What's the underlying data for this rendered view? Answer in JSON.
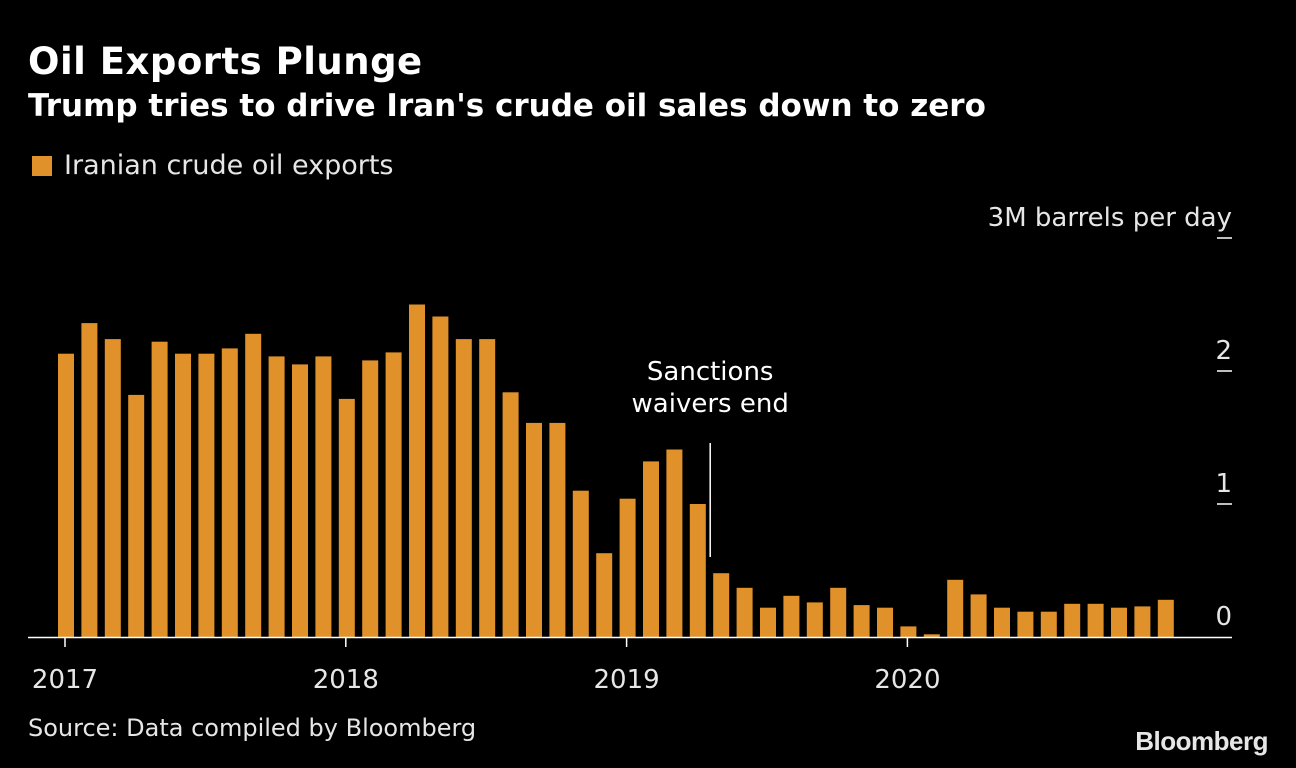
{
  "title": "Oil Exports Plunge",
  "subtitle": "Trump tries to drive Iran's crude oil sales down to zero",
  "source": "Source: Data compiled by Bloomberg",
  "brand": "Bloomberg",
  "colors": {
    "bar": "#e0912a",
    "background": "#000000",
    "text": "#ffffff",
    "axis": "#ffffff"
  },
  "chart_data": {
    "type": "bar",
    "title": "Oil Exports Plunge",
    "subtitle": "Trump tries to drive Iran's crude oil sales down to zero",
    "ylabel": "3M barrels per day",
    "ylim": [
      0,
      3
    ],
    "y_ticks": [
      0,
      1,
      2,
      3
    ],
    "y_tick_labels": [
      "0",
      "1",
      "2",
      "3M barrels per day"
    ],
    "x_tick_labels": [
      "2017",
      "2018",
      "2019",
      "2020"
    ],
    "legend": "Iranian crude oil exports",
    "grid": false,
    "series": [
      {
        "name": "Iranian crude oil exports",
        "categories": [
          "2017-01",
          "2017-02",
          "2017-03",
          "2017-04",
          "2017-05",
          "2017-06",
          "2017-07",
          "2017-08",
          "2017-09",
          "2017-10",
          "2017-11",
          "2017-12",
          "2018-01",
          "2018-02",
          "2018-03",
          "2018-04",
          "2018-05",
          "2018-06",
          "2018-07",
          "2018-08",
          "2018-09",
          "2018-10",
          "2018-11",
          "2018-12",
          "2019-01",
          "2019-02",
          "2019-03",
          "2019-04",
          "2019-05",
          "2019-06",
          "2019-07",
          "2019-08",
          "2019-09",
          "2019-10",
          "2019-11",
          "2019-12",
          "2020-01",
          "2020-02",
          "2020-03",
          "2020-04",
          "2020-05",
          "2020-06",
          "2020-07",
          "2020-08",
          "2020-09",
          "2020-10",
          "2020-11",
          "2020-12"
        ],
        "values": [
          2.13,
          2.36,
          2.24,
          1.82,
          2.22,
          2.13,
          2.13,
          2.17,
          2.28,
          2.11,
          2.05,
          2.11,
          1.79,
          2.08,
          2.14,
          2.5,
          2.41,
          2.24,
          2.24,
          1.84,
          1.61,
          1.61,
          1.1,
          0.63,
          1.04,
          1.32,
          1.41,
          1.0,
          0.48,
          0.37,
          0.22,
          0.31,
          0.26,
          0.37,
          0.24,
          0.22,
          0.08,
          0.02,
          0.43,
          0.32,
          0.22,
          0.19,
          0.19,
          0.25,
          0.25,
          0.22,
          0.23,
          0.28
        ]
      }
    ],
    "annotations": [
      {
        "text_lines": [
          "Sanctions",
          "waivers end"
        ],
        "at": "2019-05"
      }
    ]
  }
}
